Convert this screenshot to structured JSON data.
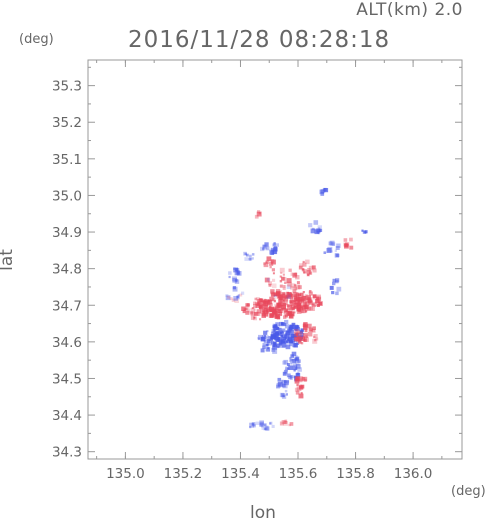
{
  "header": {
    "alt_label": "ALT(km) 2.0",
    "timestamp": "2016/11/28 08:28:18"
  },
  "units": {
    "left": "(deg)",
    "right": "(deg)"
  },
  "chart_data": {
    "type": "heatmap",
    "title": "2016/11/28 08:28:18",
    "xlabel": "lon",
    "ylabel": "lat",
    "xlim": [
      134.87,
      136.17
    ],
    "ylim": [
      34.28,
      35.37
    ],
    "xticks": [
      135.0,
      135.2,
      135.4,
      135.6,
      135.8,
      136.0
    ],
    "xtick_labels": [
      "135.0",
      "135.2",
      "135.4",
      "135.6",
      "135.8",
      "136.0"
    ],
    "yticks": [
      34.3,
      34.4,
      34.5,
      34.6,
      34.7,
      34.8,
      34.9,
      35.0,
      35.1,
      35.2,
      35.3
    ],
    "ytick_labels": [
      "34.3",
      "34.4",
      "34.5",
      "34.6",
      "34.7",
      "34.8",
      "34.9",
      "35.0",
      "35.1",
      "35.2",
      "35.3"
    ],
    "grid": false,
    "colors": {
      "positive": "#e8485c",
      "negative": "#4a5ae8",
      "axis": "#999999"
    },
    "clusters": [
      {
        "lon": 135.55,
        "lat": 34.7,
        "rx": 0.09,
        "ry": 0.035,
        "v": 0.45,
        "n": 140
      },
      {
        "lon": 135.47,
        "lat": 34.69,
        "rx": 0.06,
        "ry": 0.03,
        "v": 0.35,
        "n": 70
      },
      {
        "lon": 135.63,
        "lat": 34.71,
        "rx": 0.05,
        "ry": 0.03,
        "v": 0.4,
        "n": 60
      },
      {
        "lon": 135.56,
        "lat": 34.62,
        "rx": 0.06,
        "ry": 0.035,
        "v": -0.55,
        "n": 110
      },
      {
        "lon": 135.5,
        "lat": 34.6,
        "rx": 0.04,
        "ry": 0.03,
        "v": -0.35,
        "n": 45
      },
      {
        "lon": 135.63,
        "lat": 34.62,
        "rx": 0.04,
        "ry": 0.03,
        "v": 0.35,
        "n": 40
      },
      {
        "lon": 135.58,
        "lat": 34.53,
        "rx": 0.03,
        "ry": 0.04,
        "v": -0.3,
        "n": 40
      },
      {
        "lon": 135.61,
        "lat": 34.48,
        "rx": 0.02,
        "ry": 0.03,
        "v": 0.4,
        "n": 20
      },
      {
        "lon": 135.55,
        "lat": 34.48,
        "rx": 0.02,
        "ry": 0.03,
        "v": -0.3,
        "n": 18
      },
      {
        "lon": 135.55,
        "lat": 34.76,
        "rx": 0.06,
        "ry": 0.04,
        "v": 0.25,
        "n": 45
      },
      {
        "lon": 135.38,
        "lat": 34.78,
        "rx": 0.02,
        "ry": 0.02,
        "v": -0.35,
        "n": 14
      },
      {
        "lon": 135.38,
        "lat": 34.73,
        "rx": 0.03,
        "ry": 0.02,
        "v": -0.25,
        "n": 14
      },
      {
        "lon": 135.43,
        "lat": 34.83,
        "rx": 0.02,
        "ry": 0.02,
        "v": -0.3,
        "n": 10
      },
      {
        "lon": 135.5,
        "lat": 34.86,
        "rx": 0.03,
        "ry": 0.02,
        "v": -0.35,
        "n": 18
      },
      {
        "lon": 135.5,
        "lat": 34.81,
        "rx": 0.02,
        "ry": 0.02,
        "v": 0.3,
        "n": 10
      },
      {
        "lon": 135.63,
        "lat": 34.8,
        "rx": 0.03,
        "ry": 0.02,
        "v": 0.3,
        "n": 18
      },
      {
        "lon": 135.66,
        "lat": 34.91,
        "rx": 0.02,
        "ry": 0.02,
        "v": -0.3,
        "n": 12
      },
      {
        "lon": 135.72,
        "lat": 34.85,
        "rx": 0.03,
        "ry": 0.02,
        "v": -0.3,
        "n": 14
      },
      {
        "lon": 135.78,
        "lat": 34.87,
        "rx": 0.02,
        "ry": 0.015,
        "v": 0.4,
        "n": 8
      },
      {
        "lon": 135.83,
        "lat": 34.9,
        "rx": 0.01,
        "ry": 0.01,
        "v": -0.5,
        "n": 5
      },
      {
        "lon": 135.69,
        "lat": 35.01,
        "rx": 0.01,
        "ry": 0.01,
        "v": -0.35,
        "n": 7
      },
      {
        "lon": 135.46,
        "lat": 34.95,
        "rx": 0.01,
        "ry": 0.01,
        "v": 0.45,
        "n": 4
      },
      {
        "lon": 135.73,
        "lat": 34.75,
        "rx": 0.015,
        "ry": 0.02,
        "v": -0.4,
        "n": 8
      },
      {
        "lon": 135.48,
        "lat": 34.37,
        "rx": 0.05,
        "ry": 0.01,
        "v": -0.3,
        "n": 18
      },
      {
        "lon": 135.56,
        "lat": 34.38,
        "rx": 0.02,
        "ry": 0.01,
        "v": 0.3,
        "n": 8
      }
    ]
  }
}
